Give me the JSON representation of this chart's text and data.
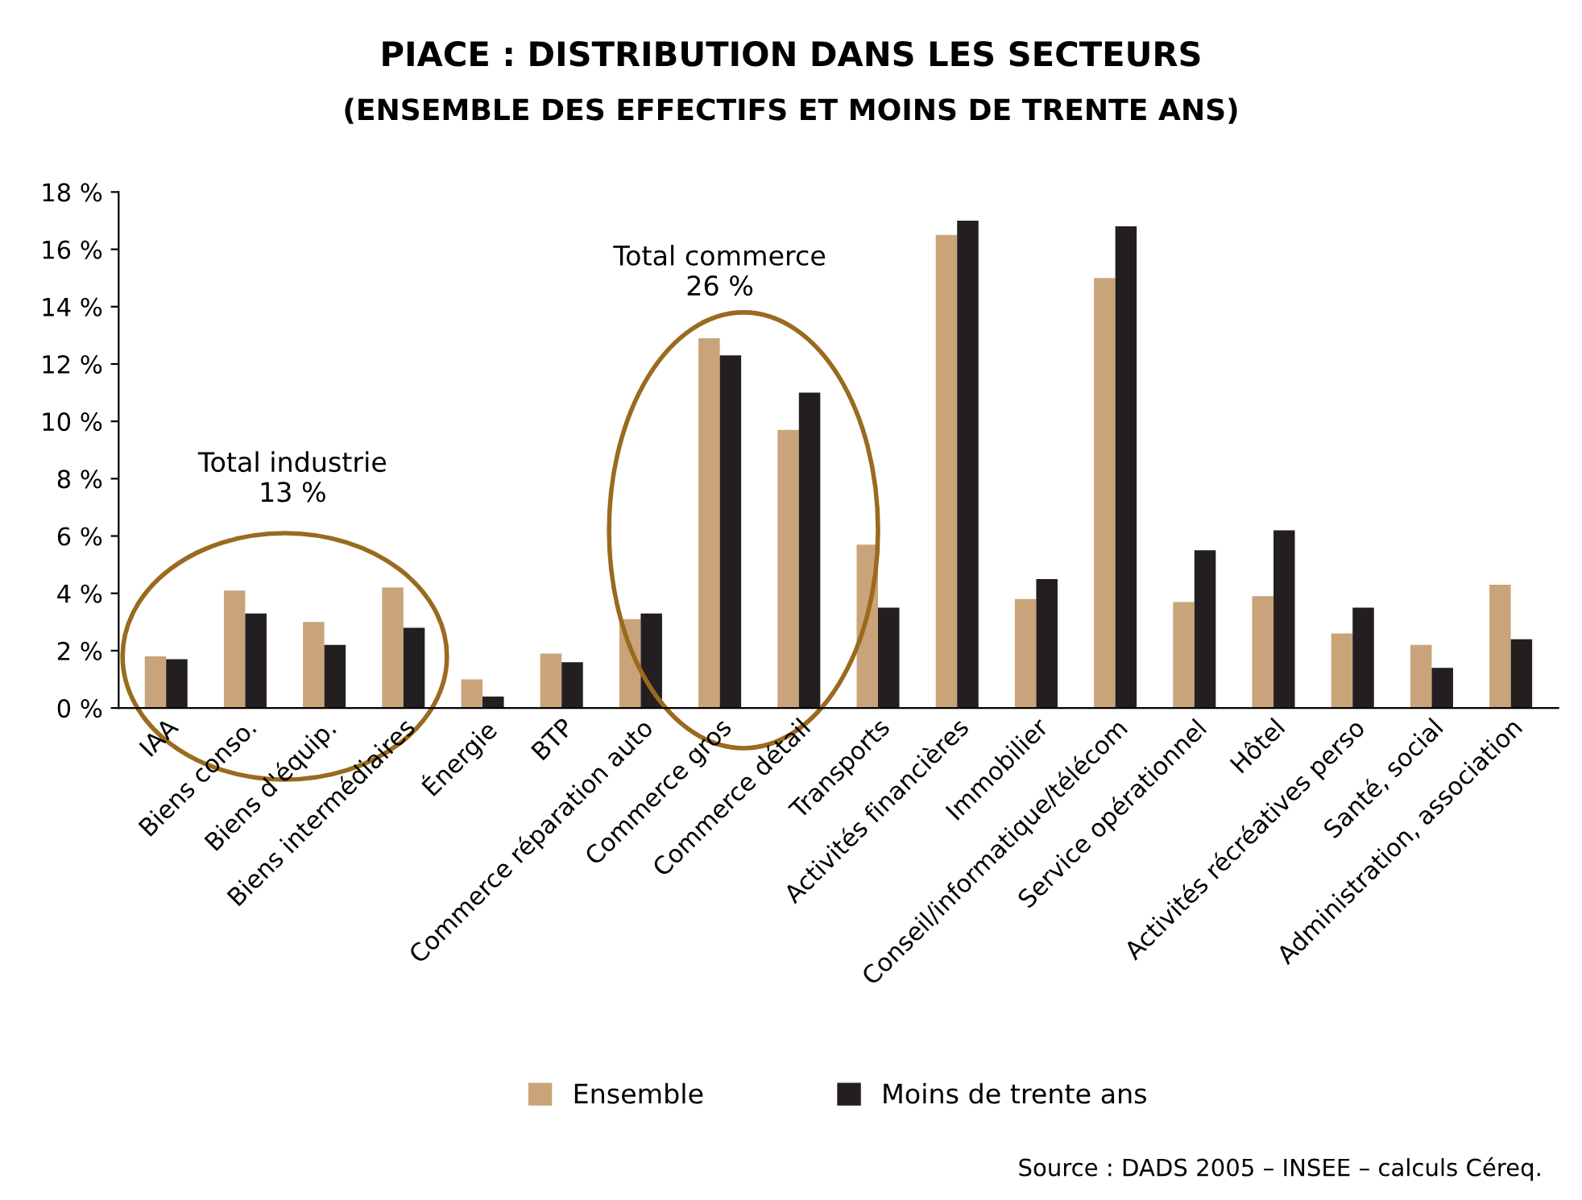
{
  "chart_data": {
    "type": "bar",
    "title": "PIACE : DISTRIBUTION DANS LES SECTEURS",
    "subtitle": "(ENSEMBLE DES EFFECTIFS ET MOINS DE TRENTE ANS)",
    "categories": [
      "IAA",
      "Biens conso.",
      "Biens d'équip.",
      "Biens intermédiaires",
      "Énergie",
      "BTP",
      "Commerce réparation auto",
      "Commerce gros",
      "Commerce détail",
      "Transports",
      "Activités financières",
      "Immobilier",
      "Conseil/informatique/télécom",
      "Service opérationnel",
      "Hôtel",
      "Activités récréatives perso",
      "Santé, social",
      "Administration, association"
    ],
    "series": [
      {
        "name": "Ensemble",
        "color": "#c9a47a",
        "values": [
          1.8,
          4.1,
          3.0,
          4.2,
          1.0,
          1.9,
          3.1,
          12.9,
          9.7,
          5.7,
          16.5,
          3.8,
          15.0,
          3.7,
          3.9,
          2.6,
          2.2,
          4.3
        ]
      },
      {
        "name": "Moins de trente ans",
        "color": "#231f20",
        "values": [
          1.7,
          3.3,
          2.2,
          2.8,
          0.4,
          1.6,
          3.3,
          12.3,
          11.0,
          3.5,
          17.0,
          4.5,
          16.8,
          5.5,
          6.2,
          3.5,
          1.4,
          2.4
        ]
      }
    ],
    "ylim": [
      0,
      18
    ],
    "yticks": [
      {
        "value": 0,
        "label": "0 %"
      },
      {
        "value": 2,
        "label": "2 %"
      },
      {
        "value": 4,
        "label": "4 %"
      },
      {
        "value": 6,
        "label": "6 %"
      },
      {
        "value": 8,
        "label": "8 %"
      },
      {
        "value": 10,
        "label": "10 %"
      },
      {
        "value": 12,
        "label": "12 %"
      },
      {
        "value": 14,
        "label": "14 %"
      },
      {
        "value": 16,
        "label": "16 %"
      },
      {
        "value": 18,
        "label": "18 %"
      }
    ],
    "grid": false,
    "legend": "bottom",
    "annotations": [
      "Total industrie\n13 %",
      "Total commerce\n26 %",
      "Source : DADS 2005 – INSEE – calculs Céreq."
    ]
  }
}
